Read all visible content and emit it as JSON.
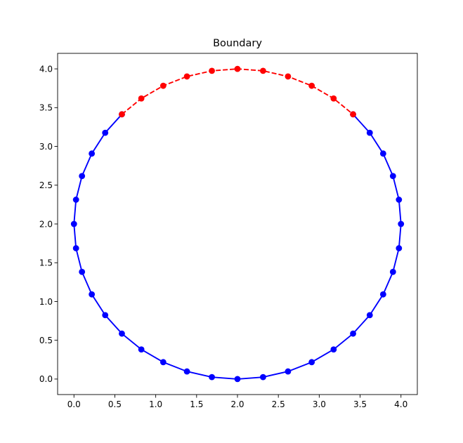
{
  "chart_data": {
    "type": "line",
    "title": "Boundary",
    "xlabel": "",
    "ylabel": "",
    "xlim": [
      -0.2,
      4.2
    ],
    "ylim": [
      -0.2,
      4.2
    ],
    "xticks": [
      "0.0",
      "0.5",
      "1.0",
      "1.5",
      "2.0",
      "2.5",
      "3.0",
      "3.5",
      "4.0"
    ],
    "yticks": [
      "0.0",
      "0.5",
      "1.0",
      "1.5",
      "2.0",
      "2.5",
      "3.0",
      "3.5",
      "4.0"
    ],
    "grid": false,
    "legend": false,
    "series": [
      {
        "style": "solid",
        "marker": "circle",
        "color": "#0000ff",
        "points": [
          [
            3.414,
            3.414
          ],
          [
            3.618,
            3.176
          ],
          [
            3.782,
            2.908
          ],
          [
            3.902,
            2.618
          ],
          [
            3.975,
            2.313
          ],
          [
            4.0,
            2.0
          ],
          [
            3.975,
            1.687
          ],
          [
            3.902,
            1.382
          ],
          [
            3.782,
            1.092
          ],
          [
            3.618,
            0.824
          ],
          [
            3.414,
            0.586
          ],
          [
            3.176,
            0.382
          ],
          [
            2.908,
            0.218
          ],
          [
            2.618,
            0.098
          ],
          [
            2.313,
            0.025
          ],
          [
            2.0,
            0.0
          ],
          [
            1.687,
            0.025
          ],
          [
            1.382,
            0.098
          ],
          [
            1.092,
            0.218
          ],
          [
            0.824,
            0.382
          ],
          [
            0.586,
            0.586
          ],
          [
            0.382,
            0.824
          ],
          [
            0.218,
            1.092
          ],
          [
            0.098,
            1.382
          ],
          [
            0.025,
            1.687
          ],
          [
            0.0,
            2.0
          ],
          [
            0.025,
            2.313
          ],
          [
            0.098,
            2.618
          ],
          [
            0.218,
            2.908
          ],
          [
            0.382,
            3.176
          ],
          [
            0.586,
            3.414
          ]
        ]
      },
      {
        "style": "dashed",
        "marker": "circle",
        "color": "#ff0000",
        "points": [
          [
            0.586,
            3.414
          ],
          [
            0.824,
            3.618
          ],
          [
            1.092,
            3.782
          ],
          [
            1.382,
            3.902
          ],
          [
            1.687,
            3.975
          ],
          [
            2.0,
            4.0
          ],
          [
            2.313,
            3.975
          ],
          [
            2.618,
            3.902
          ],
          [
            2.908,
            3.782
          ],
          [
            3.176,
            3.618
          ],
          [
            3.414,
            3.414
          ]
        ]
      }
    ]
  }
}
